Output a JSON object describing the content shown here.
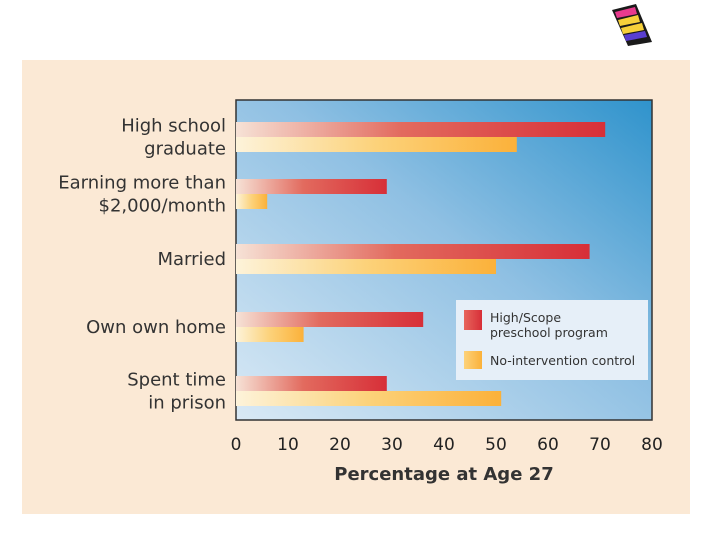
{
  "chart_data": {
    "type": "bar",
    "orientation": "horizontal",
    "categories": [
      [
        "High school",
        "graduate"
      ],
      [
        "Earning more than",
        "$2,000/month"
      ],
      [
        "Married"
      ],
      [
        "Own own home"
      ],
      [
        "Spent time",
        "in prison"
      ]
    ],
    "series": [
      {
        "name": "High/Scope preschool program",
        "legend_lines": [
          "High/Scope",
          "preschool program"
        ],
        "values": [
          71,
          29,
          68,
          36,
          29
        ]
      },
      {
        "name": "No-intervention control",
        "legend_lines": [
          "No-intervention control"
        ],
        "values": [
          54,
          6,
          50,
          13,
          51
        ]
      }
    ],
    "xlabel": "Percentage at Age 27",
    "xlim": [
      0,
      80
    ],
    "xticks": [
      0,
      10,
      20,
      30,
      40,
      50,
      60,
      70,
      80
    ],
    "legend_position": "right-middle"
  },
  "colors": {
    "panel_bg": "#fbe9d5",
    "plot_light": "#d7e8f4",
    "plot_dark": "#3a99cf",
    "red_start": "#f6e2d6",
    "red_end": "#d9323a",
    "orange_start": "#fdf1d4",
    "orange_end": "#fbb641",
    "legend_bg": "#e6eff8"
  }
}
